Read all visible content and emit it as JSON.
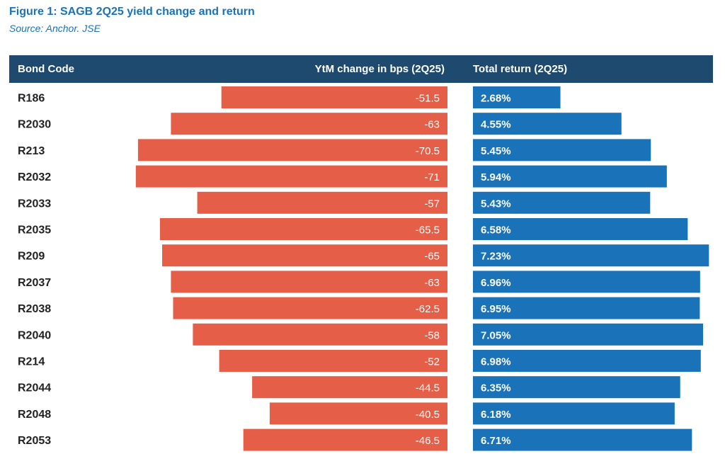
{
  "title": "Figure 1: SAGB 2Q25 yield change and return",
  "subtitle": "Source: Anchor. JSE",
  "header": {
    "code_label": "Bond Code",
    "ytm_label": "YtM change in bps (2Q25)",
    "return_label": "Total return (2Q25)"
  },
  "colors": {
    "header": "#1e4a70",
    "ytm": "#e55e48",
    "return": "#1a73b8",
    "title": "#1a73b8"
  },
  "chart_data": {
    "type": "bar",
    "categories": [
      "R186",
      "R2030",
      "R213",
      "R2032",
      "R2033",
      "R2035",
      "R209",
      "R2037",
      "R2038",
      "R2040",
      "R214",
      "R2044",
      "R2048",
      "R2053"
    ],
    "series": [
      {
        "name": "YtM change in bps (2Q25)",
        "values": [
          -51.5,
          -63,
          -70.5,
          -71,
          -57,
          -65.5,
          -65,
          -63,
          -62.5,
          -58,
          -52,
          -44.5,
          -40.5,
          -46.5
        ],
        "labels": [
          "-51.5",
          "-63",
          "-70.5",
          "-71",
          "-57",
          "-65.5",
          "-65",
          "-63",
          "-62.5",
          "-58",
          "-52",
          "-44.5",
          "-40.5",
          "-46.5"
        ]
      },
      {
        "name": "Total return (2Q25)",
        "values": [
          2.68,
          4.55,
          5.45,
          5.94,
          5.43,
          6.58,
          7.23,
          6.96,
          6.95,
          7.05,
          6.98,
          6.35,
          6.18,
          6.71
        ],
        "labels": [
          "2.68%",
          "4.55%",
          "5.45%",
          "5.94%",
          "5.43%",
          "6.58%",
          "7.23%",
          "6.96%",
          "6.95%",
          "7.05%",
          "6.98%",
          "6.35%",
          "6.18%",
          "6.71%"
        ]
      }
    ],
    "orientation": "horizontal",
    "grid": false,
    "legend": "none"
  }
}
